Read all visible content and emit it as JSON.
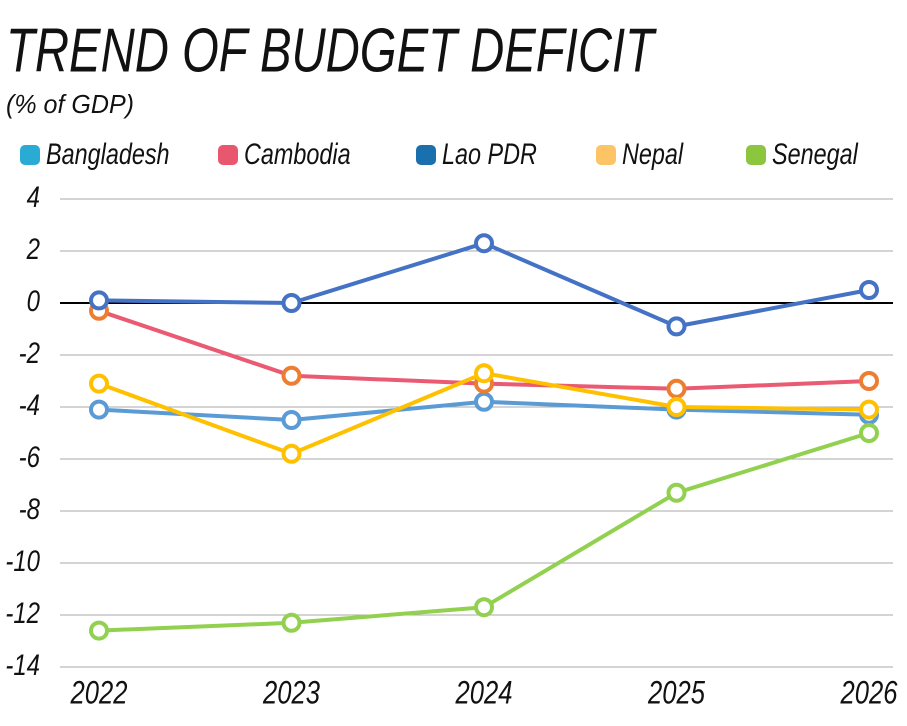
{
  "chart_data": {
    "type": "line",
    "title": "TREND OF BUDGET DEFICIT",
    "subtitle": "(% of GDP)",
    "x": [
      "2022",
      "2023",
      "2024",
      "2025",
      "2026"
    ],
    "series": [
      {
        "name": "Bangladesh",
        "color": "#5b9bd5",
        "marker_color": "#5b9bd5",
        "legend_color": "#29abd4",
        "values": [
          -4.1,
          -4.5,
          -3.8,
          -4.1,
          -4.3
        ]
      },
      {
        "name": "Cambodia",
        "color": "#ea5a72",
        "marker_color": "#ed7d31",
        "legend_color": "#e9576e",
        "values": [
          -0.3,
          -2.8,
          -3.1,
          -3.3,
          -3.0
        ]
      },
      {
        "name": "Lao PDR",
        "color": "#4472c4",
        "marker_color": "#4472c4",
        "legend_color": "#1a6fad",
        "values": [
          0.1,
          0,
          2.3,
          -0.9,
          0.5
        ]
      },
      {
        "name": "Nepal",
        "color": "#ffc000",
        "marker_color": "#ffc000",
        "legend_color": "#fcc464",
        "values": [
          -3.1,
          -5.8,
          -2.7,
          -4.0,
          -4.1
        ]
      },
      {
        "name": "Senegal",
        "color": "#92d050",
        "marker_color": "#92d050",
        "legend_color": "#8cc63f",
        "values": [
          -12.6,
          -12.3,
          -11.7,
          -7.3,
          -5.0
        ]
      }
    ],
    "ylim": [
      -14,
      4
    ],
    "yticks": [
      -14,
      -12,
      -10,
      -8,
      -6,
      -4,
      -2,
      0,
      2,
      4
    ],
    "grid": true
  }
}
